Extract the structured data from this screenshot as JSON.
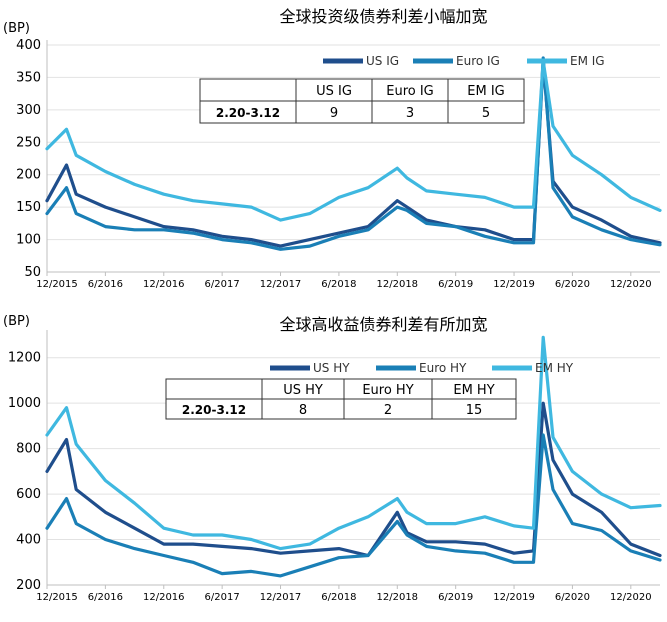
{
  "chart_data": [
    {
      "type": "line",
      "title": "全球投资级债券利差小幅加宽",
      "unit": "(BP)",
      "yticks": [
        "400",
        "350",
        "300",
        "250",
        "200",
        "150",
        "100",
        "50"
      ],
      "ylim": [
        50,
        400
      ],
      "xlim": [
        "2015-12",
        "2021-03"
      ],
      "xticks": [
        "12/2015",
        "6/2016",
        "12/2016",
        "6/2017",
        "12/2017",
        "6/2018",
        "12/2018",
        "6/2019",
        "12/2019",
        "6/2020",
        "12/2020"
      ],
      "grid": "horizontal",
      "legend_position": "top-right",
      "series": [
        {
          "name": "US IG",
          "color": "#1f4e8c",
          "x": [
            "2015-12",
            "2016-02",
            "2016-03",
            "2016-06",
            "2016-09",
            "2016-12",
            "2017-03",
            "2017-06",
            "2017-09",
            "2017-12",
            "2018-03",
            "2018-06",
            "2018-09",
            "2018-12",
            "2019-01",
            "2019-03",
            "2019-06",
            "2019-09",
            "2019-12",
            "2020-02",
            "2020-03",
            "2020-04",
            "2020-06",
            "2020-09",
            "2020-12",
            "2021-03"
          ],
          "values": [
            160,
            215,
            170,
            150,
            135,
            120,
            115,
            105,
            100,
            90,
            100,
            110,
            120,
            160,
            150,
            130,
            120,
            115,
            100,
            100,
            375,
            190,
            150,
            130,
            105,
            95
          ]
        },
        {
          "name": "Euro IG",
          "color": "#1a7fb6",
          "x": [
            "2015-12",
            "2016-02",
            "2016-03",
            "2016-06",
            "2016-09",
            "2016-12",
            "2017-03",
            "2017-06",
            "2017-09",
            "2017-12",
            "2018-03",
            "2018-06",
            "2018-09",
            "2018-12",
            "2019-01",
            "2019-03",
            "2019-06",
            "2019-09",
            "2019-12",
            "2020-02",
            "2020-03",
            "2020-04",
            "2020-06",
            "2020-09",
            "2020-12",
            "2021-03"
          ],
          "values": [
            140,
            180,
            140,
            120,
            115,
            115,
            110,
            100,
            95,
            85,
            90,
            105,
            115,
            150,
            145,
            125,
            120,
            105,
            95,
            95,
            380,
            180,
            135,
            115,
            100,
            92
          ]
        },
        {
          "name": "EM IG",
          "color": "#3fb8e0",
          "x": [
            "2015-12",
            "2016-02",
            "2016-03",
            "2016-06",
            "2016-09",
            "2016-12",
            "2017-03",
            "2017-06",
            "2017-09",
            "2017-12",
            "2018-03",
            "2018-06",
            "2018-09",
            "2018-12",
            "2019-01",
            "2019-03",
            "2019-06",
            "2019-09",
            "2019-12",
            "2020-02",
            "2020-03",
            "2020-04",
            "2020-06",
            "2020-09",
            "2020-12",
            "2021-03"
          ],
          "values": [
            240,
            270,
            230,
            205,
            185,
            170,
            160,
            155,
            150,
            130,
            140,
            165,
            180,
            210,
            195,
            175,
            170,
            165,
            150,
            150,
            375,
            275,
            230,
            200,
            165,
            145
          ]
        }
      ],
      "table": {
        "headers": [
          "",
          "US IG",
          "Euro IG",
          "EM IG"
        ],
        "row": [
          "2.20-3.12",
          "9",
          "3",
          "5"
        ]
      }
    },
    {
      "type": "line",
      "title": "全球高收益债券利差有所加宽",
      "unit": "(BP)",
      "yticks": [
        "1200",
        "1000",
        "800",
        "600",
        "400",
        "200"
      ],
      "ylim": [
        200,
        1300
      ],
      "xlim": [
        "2015-12",
        "2021-03"
      ],
      "xticks": [
        "12/2015",
        "6/2016",
        "12/2016",
        "6/2017",
        "12/2017",
        "6/2018",
        "12/2018",
        "6/2019",
        "12/2019",
        "6/2020",
        "12/2020"
      ],
      "grid": "horizontal",
      "legend_position": "top-right",
      "series": [
        {
          "name": "US HY",
          "color": "#1f4e8c",
          "x": [
            "2015-12",
            "2016-02",
            "2016-03",
            "2016-06",
            "2016-09",
            "2016-12",
            "2017-03",
            "2017-06",
            "2017-09",
            "2017-12",
            "2018-03",
            "2018-06",
            "2018-09",
            "2018-12",
            "2019-01",
            "2019-03",
            "2019-06",
            "2019-09",
            "2019-12",
            "2020-02",
            "2020-03",
            "2020-04",
            "2020-06",
            "2020-09",
            "2020-12",
            "2021-03"
          ],
          "values": [
            700,
            840,
            620,
            520,
            450,
            380,
            380,
            370,
            360,
            340,
            350,
            360,
            330,
            520,
            430,
            390,
            390,
            380,
            340,
            350,
            1000,
            750,
            600,
            520,
            380,
            330
          ]
        },
        {
          "name": "Euro HY",
          "color": "#1a7fb6",
          "x": [
            "2015-12",
            "2016-02",
            "2016-03",
            "2016-06",
            "2016-09",
            "2016-12",
            "2017-03",
            "2017-06",
            "2017-09",
            "2017-12",
            "2018-03",
            "2018-06",
            "2018-09",
            "2018-12",
            "2019-01",
            "2019-03",
            "2019-06",
            "2019-09",
            "2019-12",
            "2020-02",
            "2020-03",
            "2020-04",
            "2020-06",
            "2020-09",
            "2020-12",
            "2021-03"
          ],
          "values": [
            450,
            580,
            470,
            400,
            360,
            330,
            300,
            250,
            260,
            240,
            280,
            320,
            330,
            480,
            420,
            370,
            350,
            340,
            300,
            300,
            860,
            620,
            470,
            440,
            350,
            310
          ]
        },
        {
          "name": "EM HY",
          "color": "#3fb8e0",
          "x": [
            "2015-12",
            "2016-02",
            "2016-03",
            "2016-06",
            "2016-09",
            "2016-12",
            "2017-03",
            "2017-06",
            "2017-09",
            "2017-12",
            "2018-03",
            "2018-06",
            "2018-09",
            "2018-12",
            "2019-01",
            "2019-03",
            "2019-06",
            "2019-09",
            "2019-12",
            "2020-02",
            "2020-03",
            "2020-04",
            "2020-06",
            "2020-09",
            "2020-12",
            "2021-03"
          ],
          "values": [
            860,
            980,
            820,
            660,
            560,
            450,
            420,
            420,
            400,
            360,
            380,
            450,
            500,
            580,
            520,
            470,
            470,
            500,
            460,
            450,
            1290,
            850,
            700,
            600,
            540,
            550
          ]
        }
      ],
      "table": {
        "headers": [
          "",
          "US HY",
          "Euro HY",
          "EM HY"
        ],
        "row": [
          "2.20-3.12",
          "8",
          "2",
          "15"
        ]
      }
    }
  ]
}
